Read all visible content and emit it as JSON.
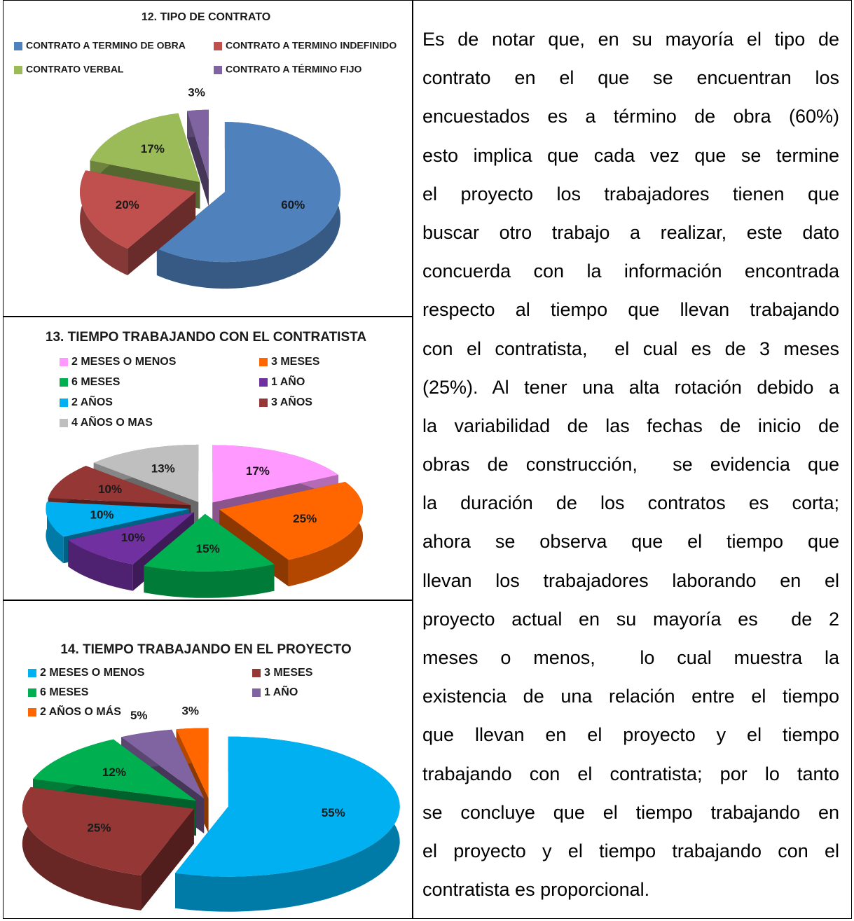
{
  "chart_data": [
    {
      "type": "pie",
      "title": "12. TIPO DE CONTRATO",
      "categories": [
        "CONTRATO A TERMINO DE OBRA",
        "CONTRATO A TERMINO INDEFINIDO",
        "CONTRATO VERBAL",
        "CONTRATO A TÉRMINO FIJO"
      ],
      "values": [
        60,
        20,
        17,
        3
      ],
      "value_labels": [
        "60%",
        "20%",
        "17%",
        "3%"
      ],
      "colors": [
        "#4f81bd",
        "#c0504d",
        "#9bbb59",
        "#8064a2"
      ]
    },
    {
      "type": "pie",
      "title": "13. TIEMPO TRABAJANDO CON EL CONTRATISTA",
      "categories": [
        "2 MESES O MENOS",
        "3 MESES",
        "6 MESES",
        "1 AÑO",
        "2 AÑOS",
        "3 AÑOS",
        "4 AÑOS O MAS"
      ],
      "values": [
        17,
        25,
        15,
        10,
        10,
        10,
        13
      ],
      "value_labels": [
        "17%",
        "25%",
        "15%",
        "10%",
        "10%",
        "10%",
        "13%"
      ],
      "colors": [
        "#ff99ff",
        "#ff6600",
        "#00b050",
        "#7030a0",
        "#00b0f0",
        "#953735",
        "#bfbfbf"
      ]
    },
    {
      "type": "pie",
      "title": "14. TIEMPO TRABAJANDO EN EL PROYECTO",
      "categories": [
        "2 MESES O MENOS",
        "3 MESES",
        "6 MESES",
        "1 AÑO",
        "2 AÑOS O MÁS"
      ],
      "values": [
        55,
        25,
        12,
        5,
        3
      ],
      "value_labels": [
        "55%",
        "25%",
        "12%",
        "5%",
        "3%"
      ],
      "colors": [
        "#00b0f0",
        "#953735",
        "#00b050",
        "#8064a2",
        "#ff6600"
      ]
    }
  ],
  "paragraph_lines": [
    "Es de notar que, en su mayoría el tipo de",
    "contrato en el que se encuentran los",
    "encuestados es a término de obra (60%)",
    "esto implica que cada vez que se termine",
    "el proyecto los trabajadores tienen que",
    "buscar otro trabajo a realizar, este dato",
    "concuerda con la información encontrada",
    "respecto al tiempo que llevan trabajando",
    "con el contratista,  el cual es de 3 meses",
    "(25%). Al tener una alta rotación debido a",
    "la variabilidad de las fechas de inicio de",
    "obras de construcción,  se evidencia que",
    "la duración de los contratos es corta;",
    "ahora se observa que el tiempo que",
    "llevan los trabajadores laborando en el",
    "proyecto actual en su mayoría es  de 2",
    "meses o menos,  lo cual muestra la",
    "existencia de una relación entre el tiempo",
    "que llevan en el proyecto y el tiempo",
    "trabajando con el contratista; por lo tanto",
    "se concluye que el tiempo trabajando en",
    "el proyecto y el tiempo trabajando con el",
    "contratista es proporcional."
  ]
}
